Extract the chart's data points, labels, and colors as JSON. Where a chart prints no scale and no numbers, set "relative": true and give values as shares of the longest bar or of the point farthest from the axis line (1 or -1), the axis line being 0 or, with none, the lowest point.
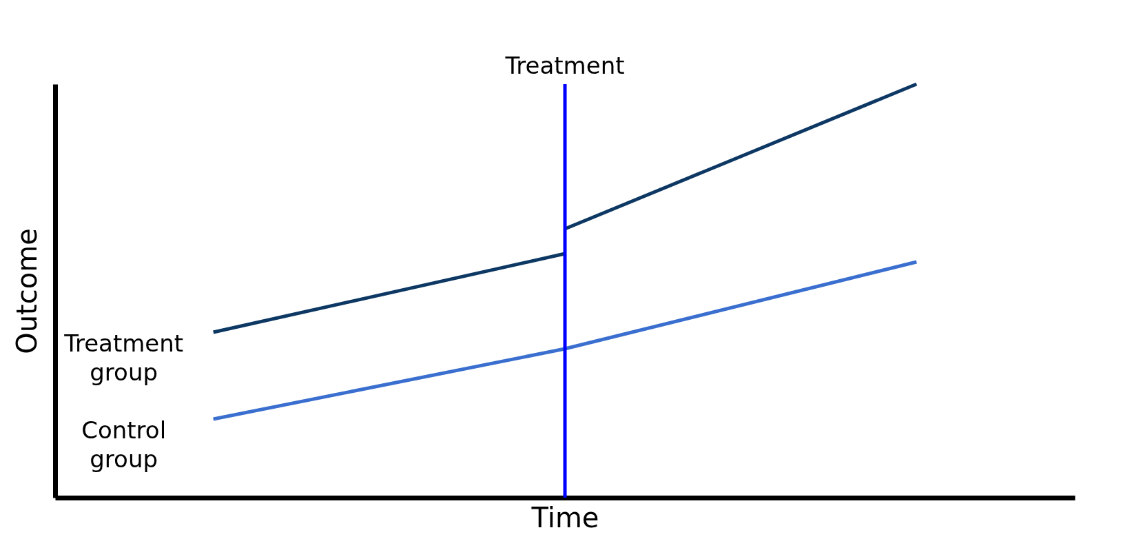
{
  "chart_data": {
    "type": "line",
    "relative": true,
    "xlabel": "Time",
    "ylabel": "Outcome",
    "categories": [
      null,
      null,
      null
    ],
    "series": [
      {
        "name": "Treatment group",
        "color": "#0d3864",
        "values": [
          0.4,
          0.59,
          null
        ]
      },
      {
        "color": "#0d3864",
        "values": [
          null,
          0.65,
          1.0
        ]
      },
      {
        "name": "Control group",
        "color": "#3a6fcf",
        "values": [
          0.19,
          0.36,
          0.57
        ]
      }
    ],
    "annotations": [
      "Treatment"
    ],
    "grid": false,
    "marker": "none",
    "line_style": "solid"
  }
}
